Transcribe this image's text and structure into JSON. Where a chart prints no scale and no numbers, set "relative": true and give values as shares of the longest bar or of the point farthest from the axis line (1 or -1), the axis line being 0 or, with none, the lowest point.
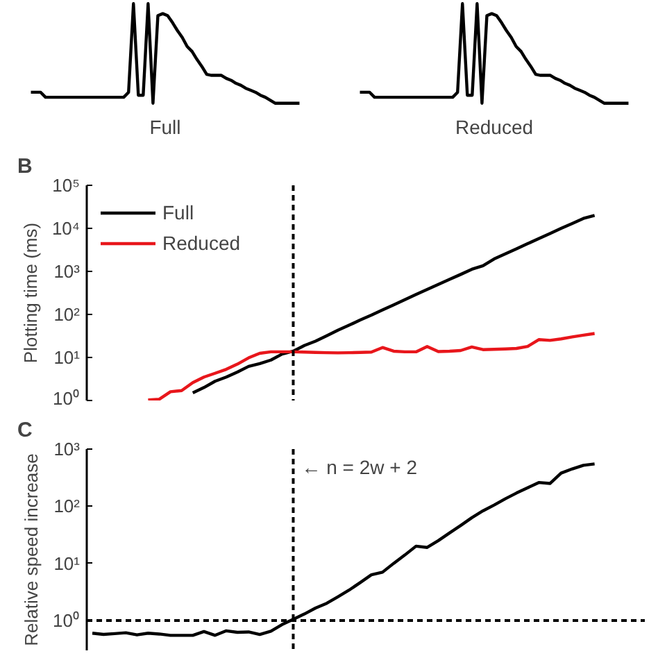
{
  "chart_data": [
    {
      "type": "line",
      "relative": true,
      "xlabel": "Full",
      "color": "#000000",
      "categories": [
        null,
        null,
        null,
        null,
        null,
        null,
        null,
        null,
        null,
        null,
        null,
        null,
        null,
        null,
        null,
        null,
        null,
        null,
        null,
        null,
        null,
        null,
        null,
        null,
        null,
        null,
        null,
        null,
        null,
        null,
        null,
        null,
        null,
        null,
        null,
        null,
        null,
        null,
        null,
        null,
        null,
        null,
        null,
        null,
        null,
        null,
        null,
        null,
        null,
        null,
        null,
        null,
        null,
        null,
        null,
        null
      ],
      "values": [
        0.11,
        0.11,
        0.11,
        0.06,
        0.06,
        0.06,
        0.06,
        0.06,
        0.06,
        0.06,
        0.06,
        0.06,
        0.06,
        0.06,
        0.06,
        0.06,
        0.06,
        0.06,
        0.06,
        0.06,
        0.11,
        1,
        0.08,
        0.08,
        1,
        0,
        0.88,
        0.9,
        0.88,
        0.81,
        0.73,
        0.66,
        0.57,
        0.52,
        0.44,
        0.37,
        0.29,
        0.28,
        0.28,
        0.28,
        0.25,
        0.23,
        0.2,
        0.18,
        0.15,
        0.13,
        0.11,
        0.08,
        0.06,
        0.03,
        0,
        0,
        0,
        0,
        0,
        0
      ]
    },
    {
      "type": "line",
      "relative": true,
      "xlabel": "Reduced",
      "color": "#000000",
      "categories": [
        null,
        null,
        null,
        null,
        null,
        null,
        null,
        null,
        null,
        null,
        null,
        null,
        null,
        null,
        null,
        null,
        null,
        null,
        null,
        null,
        null,
        null,
        null,
        null,
        null,
        null,
        null,
        null,
        null,
        null,
        null,
        null,
        null,
        null,
        null,
        null,
        null,
        null,
        null,
        null,
        null,
        null,
        null,
        null,
        null,
        null,
        null,
        null,
        null,
        null,
        null,
        null,
        null,
        null,
        null,
        null
      ],
      "values": [
        0.11,
        0.11,
        0.11,
        0.06,
        0.06,
        0.06,
        0.06,
        0.06,
        0.06,
        0.06,
        0.06,
        0.06,
        0.06,
        0.06,
        0.06,
        0.06,
        0.06,
        0.06,
        0.06,
        0.06,
        0.11,
        1,
        0.08,
        0.08,
        1,
        0,
        0.88,
        0.9,
        0.88,
        0.81,
        0.73,
        0.66,
        0.57,
        0.52,
        0.44,
        0.37,
        0.29,
        0.28,
        0.28,
        0.28,
        0.25,
        0.23,
        0.2,
        0.18,
        0.15,
        0.13,
        0.11,
        0.08,
        0.06,
        0.03,
        0,
        0,
        0,
        0,
        0,
        0
      ]
    },
    {
      "type": "line",
      "title": "B",
      "ylabel": "Plotting time (ms)",
      "log": "y",
      "grid": false,
      "legend": "top left",
      "categories": [
        null,
        null,
        null,
        null,
        null,
        null,
        null,
        null,
        null,
        null,
        null,
        null,
        null,
        null,
        null,
        null,
        null,
        null,
        null,
        null,
        null,
        null,
        null,
        null,
        null,
        null,
        null,
        null,
        null,
        null,
        null,
        null,
        null,
        null,
        null,
        null,
        null,
        null,
        null,
        null,
        null,
        null,
        null,
        null,
        null,
        null,
        null,
        null,
        null,
        null
      ],
      "ylim": [
        1,
        100000
      ],
      "yticks": [
        {
          "value": 1,
          "label": "10⁰"
        },
        {
          "value": 10,
          "label": "10¹"
        },
        {
          "value": 100,
          "label": "10²"
        },
        {
          "value": 1000,
          "label": "10³"
        },
        {
          "value": 10000,
          "label": "10⁴"
        },
        {
          "value": 100000,
          "label": "10⁵"
        }
      ],
      "series": [
        {
          "name": "Full",
          "color": "#000000",
          "values": [
            null,
            null,
            null,
            null,
            null,
            null,
            null,
            null,
            null,
            1.5,
            2.0,
            2.8,
            3.5,
            4.6,
            6.2,
            7.2,
            8.7,
            12,
            14,
            19,
            24,
            32,
            43,
            56,
            74,
            96,
            127,
            166,
            220,
            290,
            380,
            500,
            650,
            850,
            1120,
            1350,
            1950,
            2550,
            3350,
            4400,
            5800,
            7600,
            10000,
            13000,
            17000,
            20000,
            null,
            null,
            null,
            null
          ]
        },
        {
          "name": "Reduced",
          "color": "#e8161b",
          "values": [
            null,
            null,
            null,
            null,
            null,
            1.03,
            1.07,
            1.6,
            1.7,
            2.6,
            3.5,
            4.3,
            5.3,
            7,
            9.8,
            12.5,
            13.5,
            13.5,
            13.5,
            13.3,
            13.1,
            12.9,
            12.8,
            12.9,
            13.1,
            13.3,
            17,
            14,
            13.5,
            13.5,
            18,
            13.7,
            14,
            14.5,
            17.5,
            15.2,
            15.5,
            15.8,
            16.2,
            18,
            26,
            25,
            27,
            30,
            33,
            36,
            null,
            null,
            null,
            null
          ]
        }
      ],
      "tick_labels": "y"
    },
    {
      "type": "line",
      "title": "C",
      "ylabel": "Relative speed increase",
      "log": "y",
      "grid": false,
      "tick_labels": "y",
      "color": "#000000",
      "categories": [
        null,
        null,
        null,
        null,
        null,
        null,
        null,
        null,
        null,
        null,
        null,
        null,
        null,
        null,
        null,
        null,
        null,
        null,
        null,
        null,
        null,
        null,
        null,
        null,
        null,
        null,
        null,
        null,
        null,
        null,
        null,
        null,
        null,
        null,
        null,
        null,
        null,
        null,
        null,
        null,
        null,
        null,
        null,
        null,
        null,
        null,
        null,
        null,
        null,
        null
      ],
      "ylim": [
        0.3,
        1000
      ],
      "yticks": [
        {
          "value": 1,
          "label": "10⁰"
        },
        {
          "value": 10,
          "label": "10¹"
        },
        {
          "value": 100,
          "label": "10²"
        },
        {
          "value": 1000,
          "label": "10³"
        }
      ],
      "values": [
        0.6,
        0.57,
        0.59,
        0.61,
        0.56,
        0.6,
        0.58,
        0.55,
        0.55,
        0.55,
        0.64,
        0.55,
        0.66,
        0.62,
        0.63,
        0.57,
        0.65,
        0.85,
        1.05,
        1.3,
        1.65,
        2.0,
        2.6,
        3.4,
        4.6,
        6.3,
        7.0,
        10,
        14,
        20,
        19,
        25,
        34,
        46,
        63,
        83,
        105,
        135,
        170,
        210,
        260,
        250,
        380,
        450,
        520,
        550,
        null,
        null,
        null,
        null
      ],
      "annotations": [
        "← n = 2w + 2"
      ],
      "ref_lines": [
        {
          "axis": "y",
          "value": 1,
          "line_style": "dashed"
        }
      ]
    }
  ]
}
